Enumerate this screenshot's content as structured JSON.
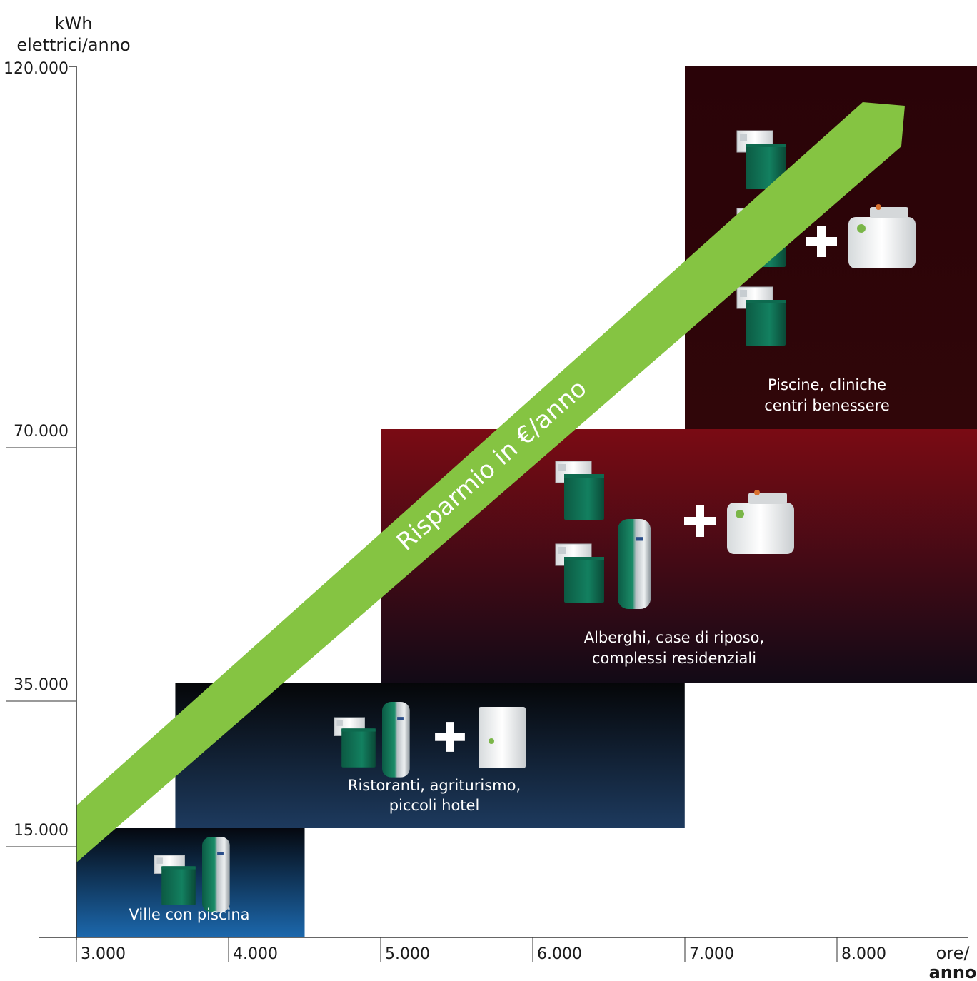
{
  "chart_data": {
    "type": "area",
    "title": "",
    "ylabel": "kWh elettrici/anno",
    "ylabel_lines": [
      "kWh",
      "elettrici/anno"
    ],
    "xlabel": "ore/ anno",
    "xlabel_lines": [
      "ore/",
      "anno"
    ],
    "y_ticks": [
      {
        "value": 15000,
        "label": "15.000"
      },
      {
        "value": 35000,
        "label": "35.000"
      },
      {
        "value": 70000,
        "label": "70.000"
      },
      {
        "value": 120000,
        "label": "120.000"
      }
    ],
    "x_ticks": [
      {
        "value": 3000,
        "label": "3.000"
      },
      {
        "value": 4000,
        "label": "4.000"
      },
      {
        "value": 5000,
        "label": "5.000"
      },
      {
        "value": 6000,
        "label": "6.000"
      },
      {
        "value": 7000,
        "label": "7.000"
      },
      {
        "value": 8000,
        "label": "8.000"
      }
    ],
    "zones": [
      {
        "label_lines": [
          "Ville con piscina"
        ],
        "x_range": [
          3000,
          4500
        ],
        "y_range": [
          0,
          15000
        ],
        "units": [
          "pump",
          "tank"
        ],
        "plus": null,
        "color_top": "#05080f",
        "color_bottom": "#1c68ad"
      },
      {
        "label_lines": [
          "Ristoranti, agriturismo,",
          "piccoli hotel"
        ],
        "x_range": [
          3650,
          6999
        ],
        "y_range": [
          15000,
          35000
        ],
        "units": [
          "pump",
          "tank"
        ],
        "plus": "boiler",
        "color_top": "#050608",
        "color_bottom": "#1d3a5e"
      },
      {
        "label_lines": [
          "Alberghi, case di riposo,",
          "complessi residenziali"
        ],
        "x_range": [
          5000,
          8999
        ],
        "y_range": [
          35000,
          70000
        ],
        "units": [
          "pump",
          "pump+tank"
        ],
        "plus": "cogenerator",
        "color_top": "#7a0b14",
        "color_bottom": "#120a16"
      },
      {
        "label_lines": [
          "Piscine, cliniche",
          "centri benessere"
        ],
        "x_range": [
          7000,
          8999
        ],
        "y_range": [
          70000,
          120000
        ],
        "units": [
          "pump",
          "pump",
          "pump"
        ],
        "plus": "cogenerator",
        "color_top": "#2a0308",
        "color_bottom": "#300609"
      }
    ],
    "trend": {
      "label": "Risparmio in €/anno",
      "color": "#85c442",
      "direction": "increasing"
    },
    "grid": false,
    "legend": "none"
  }
}
